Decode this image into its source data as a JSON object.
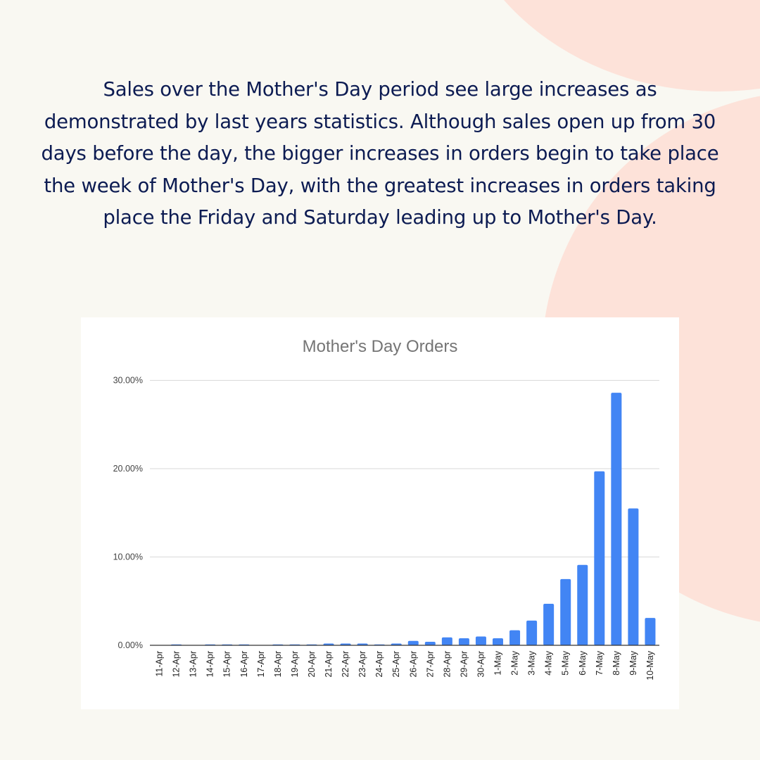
{
  "intro": {
    "text": "Sales over the Mother's Day period see large increases as demonstrated by last years statistics. Although sales open up from 30 days before the day, the bigger increases in orders begin to take place the week of Mother's Day, with the greatest increases in orders taking place the Friday and Saturday leading up to Mother's Day."
  },
  "colors": {
    "background": "#f9f8f2",
    "blob": "#fde2d9",
    "text": "#0c1b52",
    "bar": "#4285F4",
    "grid": "#d9d9d9",
    "axis": "#333333"
  },
  "chart_data": {
    "type": "bar",
    "title": "Mother's Day Orders",
    "xlabel": "",
    "ylabel": "",
    "ylim": [
      0,
      30
    ],
    "yticks": [
      "0.00%",
      "10.00%",
      "20.00%",
      "30.00%"
    ],
    "grid": true,
    "legend": null,
    "categories": [
      "11-Apr",
      "12-Apr",
      "13-Apr",
      "14-Apr",
      "15-Apr",
      "16-Apr",
      "17-Apr",
      "18-Apr",
      "19-Apr",
      "20-Apr",
      "21-Apr",
      "22-Apr",
      "23-Apr",
      "24-Apr",
      "25-Apr",
      "26-Apr",
      "27-Apr",
      "28-Apr",
      "29-Apr",
      "30-Apr",
      "1-May",
      "2-May",
      "3-May",
      "4-May",
      "5-May",
      "6-May",
      "7-May",
      "8-May",
      "9-May",
      "10-May"
    ],
    "values": [
      0,
      0.1,
      0,
      0.1,
      0.1,
      0.1,
      0,
      0.1,
      0.1,
      0.1,
      0.2,
      0.2,
      0.2,
      0.1,
      0.2,
      0.5,
      0.4,
      0.9,
      0.8,
      1.0,
      0.8,
      1.7,
      2.8,
      4.7,
      7.5,
      9.1,
      19.7,
      28.6,
      15.5,
      3.1
    ],
    "unit": "%"
  }
}
